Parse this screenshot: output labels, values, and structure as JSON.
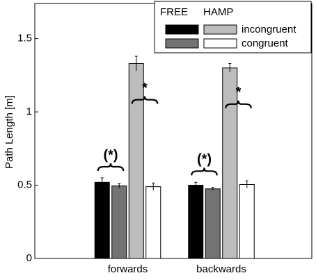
{
  "chart_data": {
    "type": "bar",
    "y_label": "Path Length [m]",
    "categories": [
      "forwards",
      "backwards"
    ],
    "ylim": [
      0,
      1.74
    ],
    "yticks": [
      0,
      0.5,
      1,
      1.5
    ],
    "legend": {
      "headers": [
        "FREE",
        "HAMP"
      ],
      "labels": [
        "incongruent",
        "congruent"
      ]
    },
    "series": [
      {
        "color": "#000000",
        "values": [
          0.52,
          0.5
        ],
        "errors": [
          0.03,
          0.02
        ]
      },
      {
        "color": "#737373",
        "values": [
          0.495,
          0.475
        ],
        "errors": [
          0.015,
          0.01
        ]
      },
      {
        "color": "#bdbdbd",
        "values": [
          1.33,
          1.3
        ],
        "errors": [
          0.05,
          0.03
        ]
      },
      {
        "color": "#ffffff",
        "values": [
          0.49,
          0.505
        ],
        "errors": [
          0.025,
          0.025
        ]
      }
    ],
    "annotations": [
      [
        "(*)",
        "*"
      ],
      [
        "(*)",
        "*"
      ]
    ]
  }
}
